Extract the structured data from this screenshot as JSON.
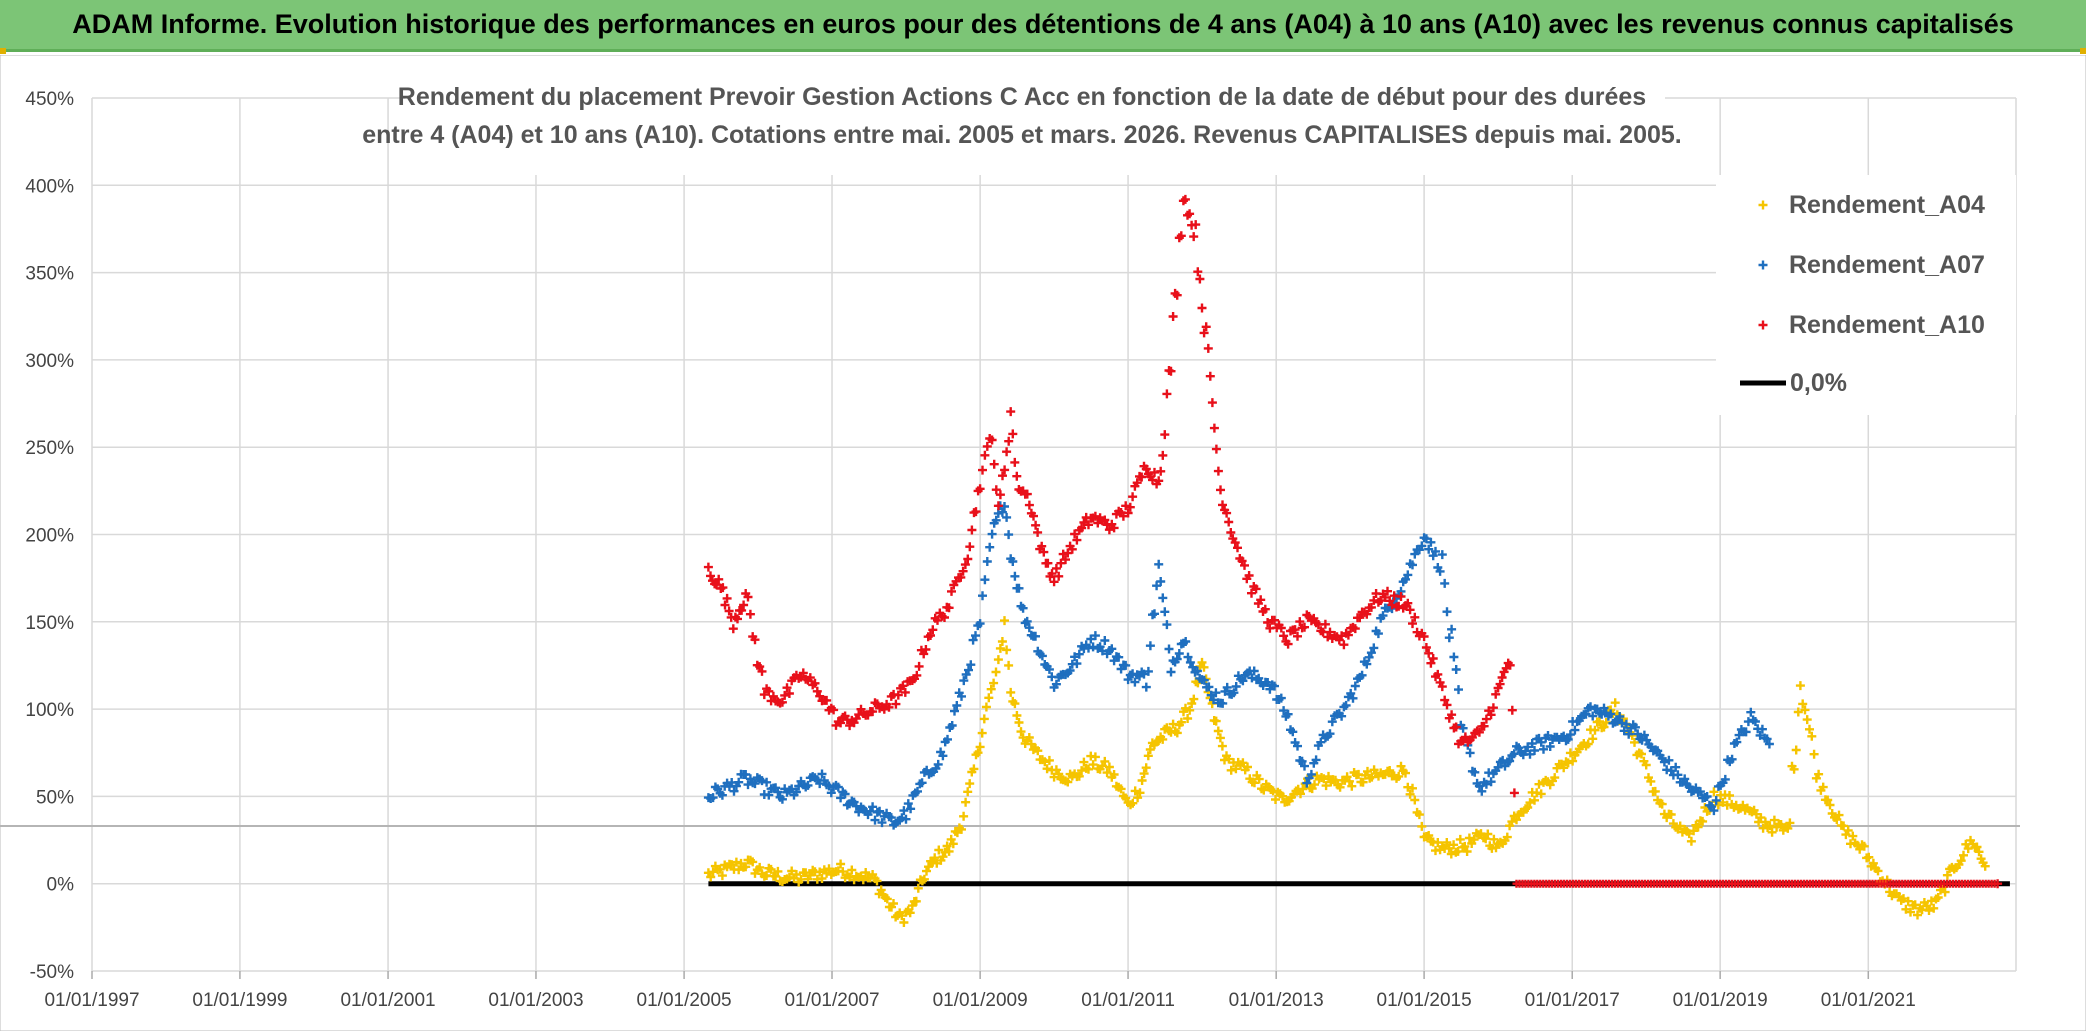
{
  "banner": {
    "title": "ADAM Informe. Evolution historique des performances en euros pour des détentions de 4 ans (A04) à 10 ans (A10) avec les revenus connus capitalisés"
  },
  "colors": {
    "banner_bg": "#7cc576",
    "a04": "#f5c400",
    "a07": "#1f6fbf",
    "a10": "#e8101a",
    "zero": "#000000"
  },
  "chart_data": {
    "type": "scatter",
    "title_lines": [
      "Rendement du placement Prevoir Gestion Actions C Acc en fonction de la date de début pour des durées",
      "entre 4 (A04) et 10 ans (A10). Cotations entre mai. 2005 et mars. 2026. Revenus CAPITALISES depuis mai. 2005."
    ],
    "xlabel": "",
    "ylabel": "",
    "x_range": [
      "1997-01-01",
      "2022-12-31"
    ],
    "y_range": [
      -50,
      450
    ],
    "x_ticks": [
      "01/01/1997",
      "01/01/1999",
      "01/01/2001",
      "01/01/2003",
      "01/01/2005",
      "01/01/2007",
      "01/01/2009",
      "01/01/2011",
      "01/01/2013",
      "01/01/2015",
      "01/01/2017",
      "01/01/2019",
      "01/01/2021"
    ],
    "y_ticks": [
      "-50%",
      "0%",
      "50%",
      "100%",
      "150%",
      "200%",
      "250%",
      "300%",
      "350%",
      "400%",
      "450%"
    ],
    "grid": true,
    "legend_position": "right",
    "series": [
      {
        "name": "Rendement_A04",
        "marker": "plus",
        "points": [
          [
            "2005-05",
            5
          ],
          [
            "2005-08",
            8
          ],
          [
            "2005-11",
            12
          ],
          [
            "2006-02",
            6
          ],
          [
            "2006-05",
            4
          ],
          [
            "2006-08",
            3
          ],
          [
            "2006-11",
            6
          ],
          [
            "2007-02",
            8
          ],
          [
            "2007-05",
            6
          ],
          [
            "2007-08",
            2
          ],
          [
            "2007-10",
            -10
          ],
          [
            "2007-12",
            -20
          ],
          [
            "2008-02",
            -15
          ],
          [
            "2008-04",
            5
          ],
          [
            "2008-06",
            15
          ],
          [
            "2008-08",
            20
          ],
          [
            "2008-10",
            35
          ],
          [
            "2008-12",
            65
          ],
          [
            "2009-02",
            100
          ],
          [
            "2009-04",
            125
          ],
          [
            "2009-05",
            150
          ],
          [
            "2009-06",
            110
          ],
          [
            "2009-08",
            85
          ],
          [
            "2009-10",
            75
          ],
          [
            "2010-01",
            65
          ],
          [
            "2010-04",
            60
          ],
          [
            "2010-07",
            70
          ],
          [
            "2010-10",
            65
          ],
          [
            "2011-01",
            45
          ],
          [
            "2011-03",
            55
          ],
          [
            "2011-05",
            80
          ],
          [
            "2011-07",
            85
          ],
          [
            "2011-09",
            90
          ],
          [
            "2011-11",
            100
          ],
          [
            "2012-01",
            125
          ],
          [
            "2012-03",
            95
          ],
          [
            "2012-05",
            70
          ],
          [
            "2012-08",
            65
          ],
          [
            "2012-11",
            55
          ],
          [
            "2013-02",
            48
          ],
          [
            "2013-05",
            55
          ],
          [
            "2013-08",
            60
          ],
          [
            "2013-11",
            58
          ],
          [
            "2014-02",
            60
          ],
          [
            "2014-06",
            62
          ],
          [
            "2014-10",
            65
          ],
          [
            "2015-01",
            25
          ],
          [
            "2015-04",
            20
          ],
          [
            "2015-08",
            22
          ],
          [
            "2015-11",
            28
          ],
          [
            "2016-01",
            20
          ],
          [
            "2016-04",
            40
          ],
          [
            "2016-08",
            55
          ],
          [
            "2016-12",
            70
          ],
          [
            "2017-04",
            85
          ],
          [
            "2017-08",
            100
          ],
          [
            "2017-10",
            90
          ],
          [
            "2018-01",
            65
          ],
          [
            "2018-04",
            40
          ],
          [
            "2018-08",
            25
          ],
          [
            "2018-12",
            50
          ],
          [
            "2019-04",
            45
          ],
          [
            "2019-08",
            35
          ],
          [
            "2019-12",
            30
          ],
          [
            "2020-02",
            115
          ],
          [
            "2020-05",
            60
          ],
          [
            "2020-09",
            30
          ],
          [
            "2020-12",
            20
          ],
          [
            "2021-03",
            5
          ],
          [
            "2021-06",
            -10
          ],
          [
            "2021-09",
            -15
          ],
          [
            "2021-12",
            -12
          ],
          [
            "2022-03",
            10
          ],
          [
            "2022-06",
            25
          ],
          [
            "2022-08",
            10
          ]
        ]
      },
      {
        "name": "Rendement_A07",
        "marker": "plus",
        "points": [
          [
            "2005-05",
            50
          ],
          [
            "2005-08",
            55
          ],
          [
            "2005-11",
            60
          ],
          [
            "2006-02",
            55
          ],
          [
            "2006-05",
            50
          ],
          [
            "2006-08",
            55
          ],
          [
            "2006-11",
            60
          ],
          [
            "2007-02",
            52
          ],
          [
            "2007-05",
            45
          ],
          [
            "2007-08",
            40
          ],
          [
            "2007-11",
            35
          ],
          [
            "2008-01",
            40
          ],
          [
            "2008-04",
            60
          ],
          [
            "2008-07",
            75
          ],
          [
            "2008-10",
            110
          ],
          [
            "2009-01",
            150
          ],
          [
            "2009-03",
            200
          ],
          [
            "2009-05",
            220
          ],
          [
            "2009-06",
            190
          ],
          [
            "2009-08",
            155
          ],
          [
            "2009-10",
            140
          ],
          [
            "2010-01",
            115
          ],
          [
            "2010-04",
            125
          ],
          [
            "2010-07",
            140
          ],
          [
            "2010-10",
            135
          ],
          [
            "2011-01",
            120
          ],
          [
            "2011-04",
            118
          ],
          [
            "2011-06",
            180
          ],
          [
            "2011-08",
            125
          ],
          [
            "2011-10",
            140
          ],
          [
            "2012-01",
            115
          ],
          [
            "2012-04",
            105
          ],
          [
            "2012-08",
            120
          ],
          [
            "2012-12",
            115
          ],
          [
            "2013-03",
            95
          ],
          [
            "2013-06",
            60
          ],
          [
            "2013-09",
            85
          ],
          [
            "2013-12",
            100
          ],
          [
            "2014-03",
            120
          ],
          [
            "2014-06",
            150
          ],
          [
            "2014-10",
            175
          ],
          [
            "2015-01",
            200
          ],
          [
            "2015-04",
            180
          ],
          [
            "2015-07",
            90
          ],
          [
            "2015-10",
            55
          ],
          [
            "2016-01",
            65
          ],
          [
            "2016-04",
            75
          ],
          [
            "2016-08",
            80
          ],
          [
            "2016-12",
            85
          ],
          [
            "2017-04",
            100
          ],
          [
            "2017-08",
            95
          ],
          [
            "2017-12",
            85
          ],
          [
            "2018-04",
            70
          ],
          [
            "2018-08",
            55
          ],
          [
            "2018-12",
            45
          ],
          [
            "2019-03",
            75
          ],
          [
            "2019-06",
            95
          ],
          [
            "2019-09",
            80
          ]
        ]
      },
      {
        "name": "Rendement_A10",
        "marker": "plus",
        "points": [
          [
            "2005-05",
            180
          ],
          [
            "2005-07",
            170
          ],
          [
            "2005-09",
            150
          ],
          [
            "2005-11",
            165
          ],
          [
            "2006-02",
            110
          ],
          [
            "2006-05",
            105
          ],
          [
            "2006-08",
            120
          ],
          [
            "2006-11",
            110
          ],
          [
            "2007-02",
            92
          ],
          [
            "2007-05",
            95
          ],
          [
            "2007-08",
            100
          ],
          [
            "2007-11",
            105
          ],
          [
            "2008-02",
            115
          ],
          [
            "2008-05",
            145
          ],
          [
            "2008-08",
            160
          ],
          [
            "2008-11",
            190
          ],
          [
            "2009-01",
            230
          ],
          [
            "2009-03",
            260
          ],
          [
            "2009-04",
            210
          ],
          [
            "2009-06",
            270
          ],
          [
            "2009-07",
            230
          ],
          [
            "2009-09",
            220
          ],
          [
            "2009-11",
            190
          ],
          [
            "2010-01",
            175
          ],
          [
            "2010-04",
            195
          ],
          [
            "2010-07",
            210
          ],
          [
            "2010-10",
            205
          ],
          [
            "2011-01",
            215
          ],
          [
            "2011-04",
            240
          ],
          [
            "2011-06",
            230
          ],
          [
            "2011-08",
            300
          ],
          [
            "2011-10",
            395
          ],
          [
            "2011-12",
            370
          ],
          [
            "2012-02",
            300
          ],
          [
            "2012-04",
            225
          ],
          [
            "2012-06",
            200
          ],
          [
            "2012-09",
            170
          ],
          [
            "2012-12",
            150
          ],
          [
            "2013-03",
            140
          ],
          [
            "2013-06",
            150
          ],
          [
            "2013-09",
            145
          ],
          [
            "2013-12",
            140
          ],
          [
            "2014-03",
            155
          ],
          [
            "2014-06",
            165
          ],
          [
            "2014-10",
            160
          ],
          [
            "2015-01",
            140
          ],
          [
            "2015-04",
            110
          ],
          [
            "2015-07",
            80
          ],
          [
            "2015-10",
            85
          ],
          [
            "2016-01",
            110
          ],
          [
            "2016-03",
            130
          ],
          [
            "2016-04",
            0
          ],
          [
            "2017-06",
            0
          ],
          [
            "2019-01",
            0
          ],
          [
            "2020-06",
            0
          ],
          [
            "2022-10",
            0
          ]
        ]
      },
      {
        "name": "0,0%",
        "marker": "line",
        "points": [
          [
            "2005-05",
            0
          ],
          [
            "2022-12",
            0
          ]
        ]
      }
    ]
  }
}
